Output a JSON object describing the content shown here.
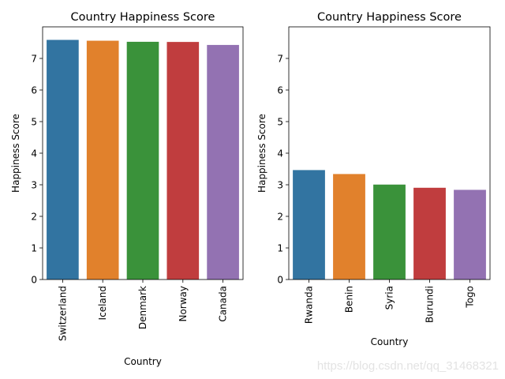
{
  "chart_data": [
    {
      "type": "bar",
      "title": "Country Happiness Score",
      "xlabel": "Country",
      "ylabel": "Happiness Score",
      "categories": [
        "Switzerland",
        "Iceland",
        "Denmark",
        "Norway",
        "Canada"
      ],
      "values": [
        7.587,
        7.561,
        7.527,
        7.522,
        7.427
      ],
      "colors": [
        "#3274a1",
        "#e1812c",
        "#3a923a",
        "#c03d3e",
        "#9372b2"
      ],
      "ylim": [
        0,
        8.0
      ],
      "yticks": [
        0,
        1,
        2,
        3,
        4,
        5,
        6,
        7
      ],
      "grid": false
    },
    {
      "type": "bar",
      "title": "Country Happiness Score",
      "xlabel": "Country",
      "ylabel": "Happiness Score",
      "categories": [
        "Rwanda",
        "Benin",
        "Syria",
        "Burundi",
        "Togo"
      ],
      "values": [
        3.465,
        3.34,
        3.006,
        2.905,
        2.839
      ],
      "colors": [
        "#3274a1",
        "#e1812c",
        "#3a923a",
        "#c03d3e",
        "#9372b2"
      ],
      "ylim": [
        0,
        8.0
      ],
      "yticks": [
        0,
        1,
        2,
        3,
        4,
        5,
        6,
        7
      ],
      "grid": false
    }
  ],
  "watermark": "https://blog.csdn.net/qq_31468321"
}
